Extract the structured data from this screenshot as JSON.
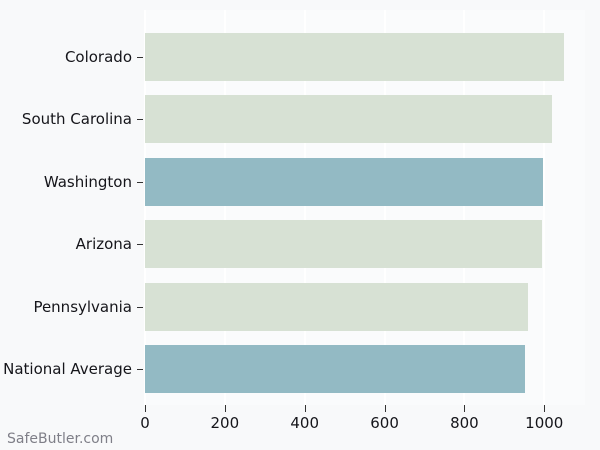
{
  "watermark": "SafeButler.com",
  "colors": {
    "figure_background": "#f8f9fa",
    "plot_background": "#fafbfc",
    "gridline": "#ffffff",
    "bar_default": "#d7e1d4",
    "bar_highlight": "#93bac4",
    "label_text": "#15151a",
    "tick_mark": "#333333",
    "watermark_text": "#7f7f88"
  },
  "chart_data": {
    "type": "bar",
    "orientation": "horizontal",
    "title": "",
    "xlabel": "",
    "ylabel": "",
    "categories": [
      "Colorado",
      "South Carolina",
      "Washington",
      "Arizona",
      "Pennsylvania",
      "National Average"
    ],
    "values": [
      1049,
      1020,
      996,
      994,
      959,
      951
    ],
    "bar_styles": [
      "default",
      "default",
      "highlight",
      "default",
      "default",
      "highlight"
    ],
    "x_ticks": [
      0,
      200,
      400,
      600,
      800,
      1000
    ],
    "x_tick_labels": [
      "0",
      "200",
      "400",
      "600",
      "800",
      "1000"
    ],
    "xlim": [
      0,
      1102
    ],
    "grid": true,
    "legend": "none"
  }
}
